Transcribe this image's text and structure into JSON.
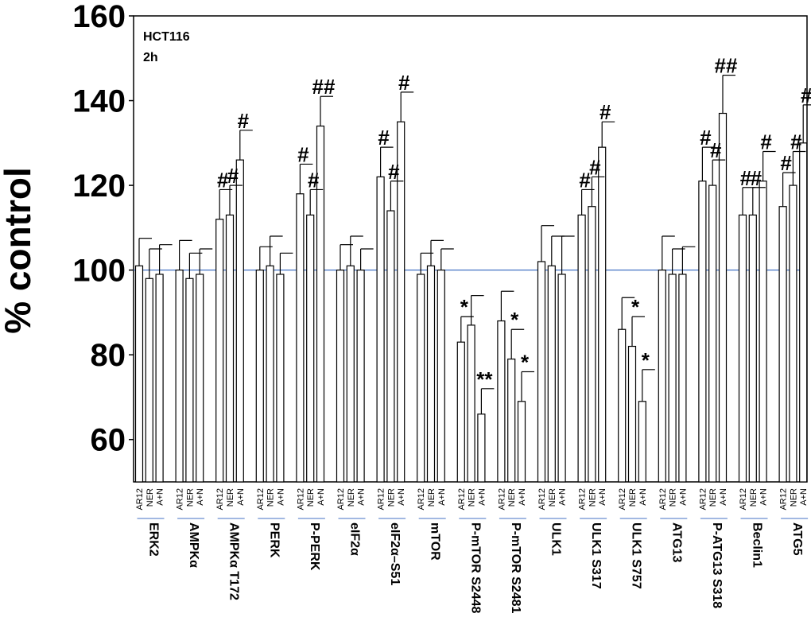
{
  "chart_data": {
    "type": "bar",
    "annotation_lines": [
      "HCT116",
      "2h"
    ],
    "ylabel": "% control",
    "ylim": [
      50,
      160
    ],
    "yticks": [
      60,
      80,
      100,
      120,
      140,
      160
    ],
    "reference_line": 100,
    "bar_labels": [
      "AR12",
      "NER",
      "A+N"
    ],
    "groups": [
      {
        "name": "ERK2",
        "values": [
          101,
          98,
          99
        ],
        "errors": [
          6.5,
          7,
          7
        ],
        "sig": [
          "",
          "",
          ""
        ]
      },
      {
        "name": "AMPKα",
        "values": [
          100,
          98,
          99
        ],
        "errors": [
          7,
          6,
          6
        ],
        "sig": [
          "",
          "",
          ""
        ]
      },
      {
        "name": "AMPKα T172",
        "values": [
          112,
          113,
          126
        ],
        "errors": [
          7,
          7,
          7
        ],
        "sig": [
          "#",
          "#",
          "#"
        ]
      },
      {
        "name": "PERK",
        "values": [
          100,
          101,
          99
        ],
        "errors": [
          5.5,
          7,
          5
        ],
        "sig": [
          "",
          "",
          ""
        ]
      },
      {
        "name": "P-PERK",
        "values": [
          118,
          113,
          134
        ],
        "errors": [
          7,
          6,
          7
        ],
        "sig": [
          "#",
          "#",
          "##"
        ]
      },
      {
        "name": "eIF2α",
        "values": [
          100,
          101,
          100
        ],
        "errors": [
          6,
          7,
          5
        ],
        "sig": [
          "",
          "",
          ""
        ]
      },
      {
        "name": "eIF2α–S51",
        "values": [
          122,
          114,
          135
        ],
        "errors": [
          7,
          7,
          7
        ],
        "sig": [
          "#",
          "#",
          "#"
        ]
      },
      {
        "name": "mTOR",
        "values": [
          99,
          101,
          100
        ],
        "errors": [
          5,
          6,
          5
        ],
        "sig": [
          "",
          "",
          ""
        ]
      },
      {
        "name": "P-mTOR S2448",
        "values": [
          83,
          87,
          66
        ],
        "errors": [
          6,
          7,
          6
        ],
        "sig": [
          "*",
          "",
          "**"
        ]
      },
      {
        "name": "P-mTOR S2481",
        "values": [
          88,
          79,
          69
        ],
        "errors": [
          7,
          7,
          7
        ],
        "sig": [
          "",
          "*",
          "*"
        ]
      },
      {
        "name": "ULK1",
        "values": [
          102,
          101,
          99
        ],
        "errors": [
          8.5,
          7,
          9
        ],
        "sig": [
          "",
          "",
          ""
        ]
      },
      {
        "name": "ULK1 S317",
        "values": [
          113,
          115,
          129
        ],
        "errors": [
          6,
          7,
          6
        ],
        "sig": [
          "#",
          "#",
          "#"
        ]
      },
      {
        "name": "ULK1 S757",
        "values": [
          86,
          82,
          69
        ],
        "errors": [
          7.5,
          7,
          7.5
        ],
        "sig": [
          "",
          "*",
          "*"
        ]
      },
      {
        "name": "ATG13",
        "values": [
          100,
          99,
          99
        ],
        "errors": [
          8,
          6,
          6.5
        ],
        "sig": [
          "",
          "",
          ""
        ]
      },
      {
        "name": "P-ATG13 S318",
        "values": [
          121,
          120,
          137
        ],
        "errors": [
          8,
          6,
          9
        ],
        "sig": [
          "#",
          "#",
          "##"
        ]
      },
      {
        "name": "Beclin1",
        "values": [
          113,
          113,
          121
        ],
        "errors": [
          6.5,
          6.5,
          7
        ],
        "sig": [
          "#",
          "#",
          "#"
        ]
      },
      {
        "name": "ATG5",
        "values": [
          115,
          120,
          130
        ],
        "errors": [
          8,
          8,
          9
        ],
        "sig": [
          "#",
          "#",
          "#"
        ]
      }
    ],
    "grid": false,
    "colors": {
      "bar_fill": "#ffffff",
      "bar_stroke": "#000000",
      "reference_line": "#4472c4",
      "group_underline": "#4472c4"
    }
  }
}
